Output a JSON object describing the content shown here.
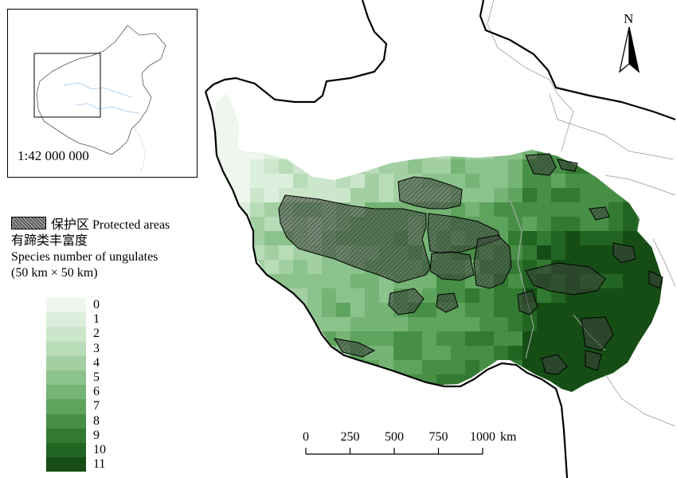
{
  "map": {
    "north_label": "N",
    "inset_scale": "1:42 000 000",
    "legend": {
      "protected_label": "保护区 Protected areas",
      "title_cn": "有蹄类丰富度",
      "title_en": "Species number of ungulates",
      "grid_size": "(50 km × 50 km)",
      "classes": [
        {
          "label": "0",
          "color": "#eef6ee"
        },
        {
          "label": "1",
          "color": "#dcefdc"
        },
        {
          "label": "2",
          "color": "#cbe6cb"
        },
        {
          "label": "3",
          "color": "#b8dcb8"
        },
        {
          "label": "4",
          "color": "#a3d0a3"
        },
        {
          "label": "5",
          "color": "#8cc38c"
        },
        {
          "label": "6",
          "color": "#75b475"
        },
        {
          "label": "7",
          "color": "#5ea35e"
        },
        {
          "label": "8",
          "color": "#478f47"
        },
        {
          "label": "9",
          "color": "#327a32"
        },
        {
          "label": "10",
          "color": "#226522"
        },
        {
          "label": "11",
          "color": "#154d15"
        }
      ]
    },
    "scale_bar": {
      "ticks": [
        "0",
        "250",
        "500",
        "750",
        "1000"
      ],
      "unit": "km"
    },
    "colors": {
      "boundary": "#000000",
      "province_line": "#b0b0b0",
      "protected_fill": "#6f7f6f",
      "inset_line": "#9ec5e8"
    }
  }
}
